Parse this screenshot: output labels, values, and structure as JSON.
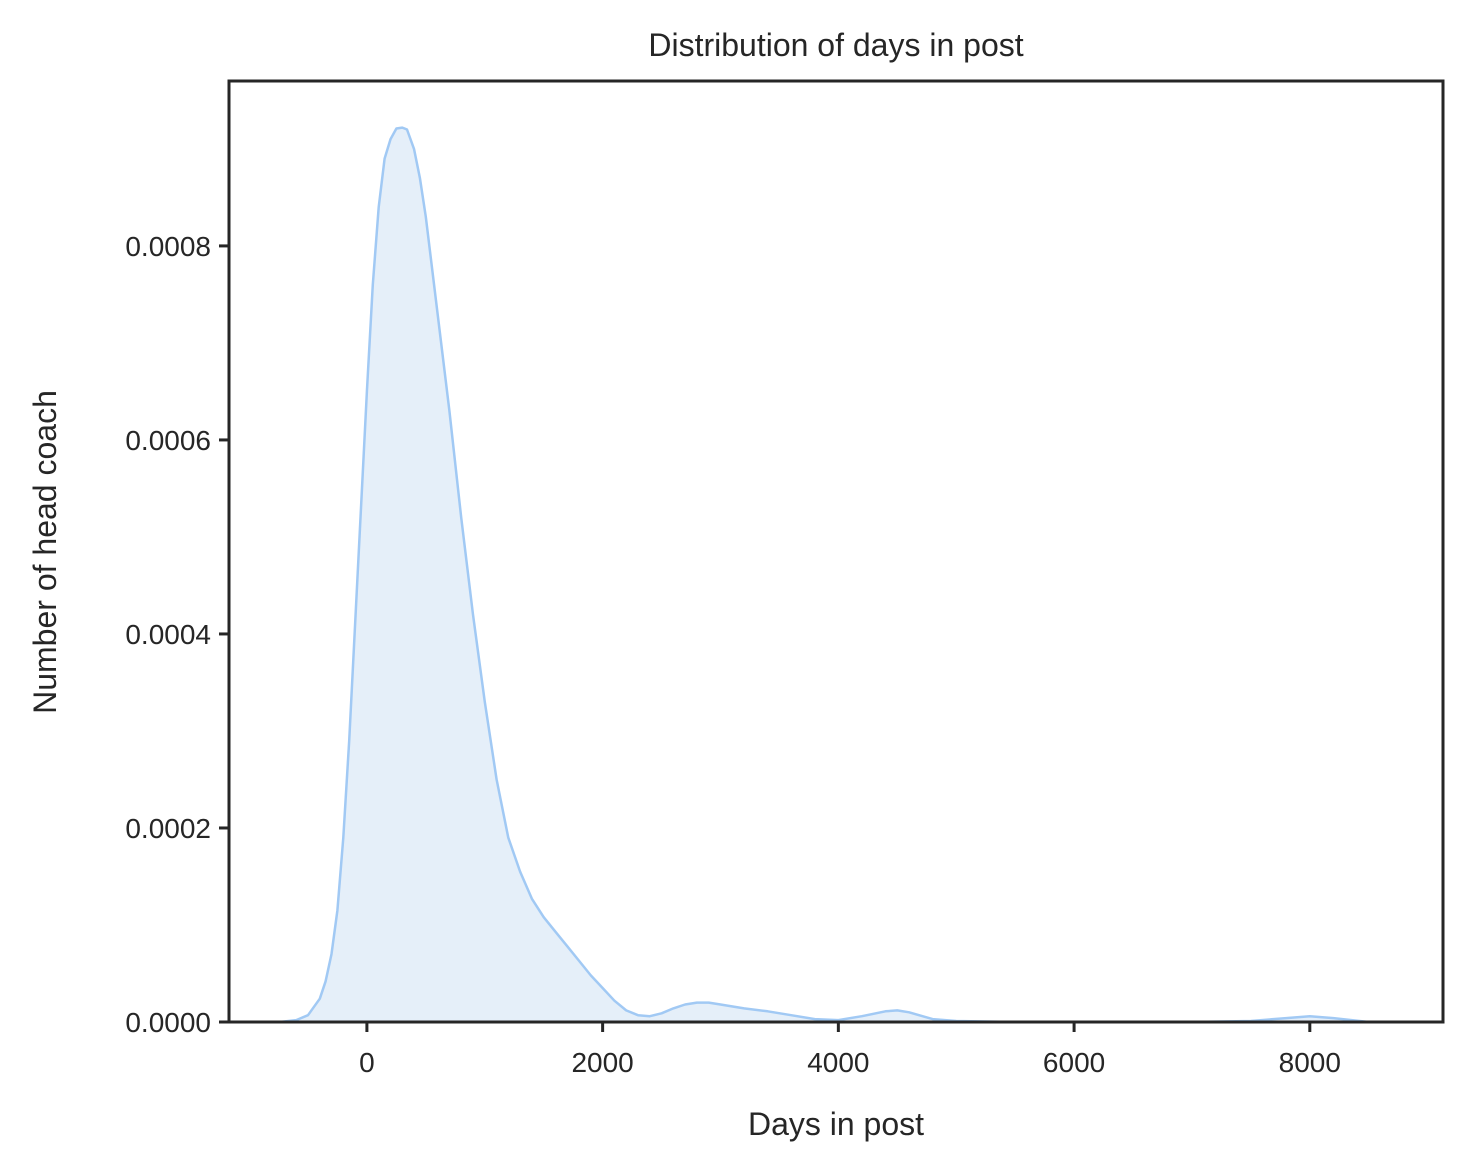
{
  "chart_data": {
    "type": "area",
    "title": "Distribution of days in post",
    "xlabel": "Days in post",
    "ylabel": "Number of head coach",
    "xlim": [
      -1170,
      9130
    ],
    "ylim": [
      0,
      0.00097
    ],
    "xticks": [
      0,
      2000,
      4000,
      6000,
      8000
    ],
    "xtick_labels": [
      "0",
      "2000",
      "4000",
      "6000",
      "8000"
    ],
    "yticks": [
      0,
      0.0002,
      0.0004,
      0.0006,
      0.0008
    ],
    "ytick_labels": [
      "0.0000",
      "0.0002",
      "0.0004",
      "0.0006",
      "0.0008"
    ],
    "grid": false,
    "colors": {
      "line": "#a1c9f4",
      "fill": "#e5eff9",
      "axes": "#262626"
    },
    "series": [
      {
        "x": [
          -740,
          -600,
          -500,
          -400,
          -350,
          -300,
          -250,
          -200,
          -150,
          -100,
          -50,
          0,
          50,
          100,
          150,
          200,
          250,
          300,
          340,
          400,
          450,
          500,
          550,
          600,
          700,
          800,
          900,
          1000,
          1100,
          1200,
          1300,
          1400,
          1500,
          1600,
          1700,
          1800,
          1900,
          2000,
          2100,
          2200,
          2300,
          2400,
          2500,
          2600,
          2700,
          2800,
          2900,
          3000,
          3200,
          3400,
          3600,
          3800,
          4000,
          4200,
          4400,
          4500,
          4600,
          4800,
          5000,
          5500,
          6000,
          6500,
          7000,
          7500,
          7800,
          8000,
          8200,
          8500
        ],
        "y": [
          0,
          2e-06,
          7e-06,
          2.4e-05,
          4.2e-05,
          7e-05,
          0.000115,
          0.00019,
          0.00029,
          0.00041,
          0.00053,
          0.00065,
          0.00076,
          0.00084,
          0.00089,
          0.00091,
          0.000921,
          0.000922,
          0.00092,
          0.0009,
          0.00087,
          0.00083,
          0.00078,
          0.00073,
          0.00063,
          0.00052,
          0.00042,
          0.00033,
          0.00025,
          0.00019,
          0.000155,
          0.000127,
          0.000108,
          9.3e-05,
          7.8e-05,
          6.3e-05,
          4.8e-05,
          3.5e-05,
          2.2e-05,
          1.2e-05,
          7e-06,
          6e-06,
          9e-06,
          1.4e-05,
          1.8e-05,
          2e-05,
          2e-05,
          1.8e-05,
          1.4e-05,
          1.1e-05,
          7e-06,
          3e-06,
          2e-06,
          6e-06,
          1.1e-05,
          1.2e-05,
          1e-05,
          3e-06,
          1e-06,
          0,
          0,
          0,
          0,
          1e-06,
          4e-06,
          6e-06,
          4e-06,
          0
        ]
      }
    ]
  }
}
